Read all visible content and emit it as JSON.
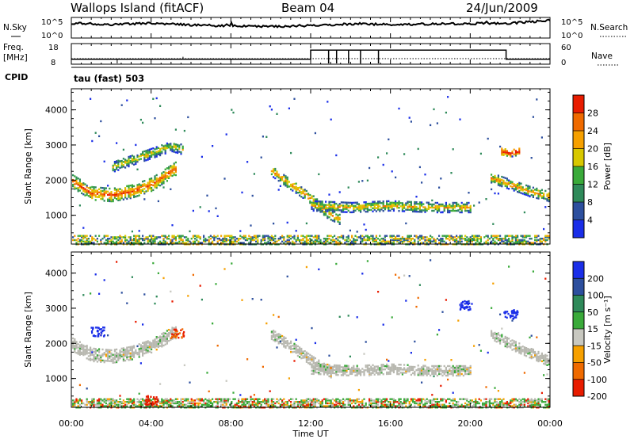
{
  "header": {
    "station": "Wallops Island (fitACF)",
    "beam": "Beam 04",
    "date": "24/Jun/2009"
  },
  "noise_panel": {
    "left_label": "N.Sky",
    "right_label": "N.Search",
    "ticks": [
      "10^5",
      "10^0"
    ]
  },
  "freq_panel": {
    "left_label_1": "Freq.",
    "left_label_2": "[MHz]",
    "left_ticks": [
      "18",
      "8"
    ],
    "right_label": "Nave",
    "right_ticks": [
      "60",
      "0"
    ]
  },
  "cpid": {
    "label": "CPID",
    "value": "tau (fast) 503"
  },
  "colors": {
    "power": [
      "#1a2ee8",
      "#2d4f9e",
      "#2f8a5a",
      "#3aaa3a",
      "#d8c800",
      "#f6a000",
      "#ef6a00",
      "#e81c00"
    ],
    "velocity": [
      "#1a2ee8",
      "#2d4f9e",
      "#2f8a5a",
      "#3aaa3a",
      "#c8c8c0",
      "#f6a000",
      "#ef6a00",
      "#e81c00"
    ],
    "ground": "#b8b8b0"
  },
  "chart_data": [
    {
      "type": "heatmap",
      "name": "power",
      "xlabel": "",
      "ylabel": "Slant Range [km]",
      "xlim": [
        0,
        24
      ],
      "ylim": [
        180,
        4600
      ],
      "yticks": [
        "1000",
        "2000",
        "3000",
        "4000"
      ],
      "colorbar": {
        "label": "Power [dB]",
        "ticks": [
          "4",
          "8",
          "12",
          "16",
          "20",
          "24",
          "28"
        ],
        "range": [
          0,
          32
        ]
      },
      "echo_bands": [
        {
          "t": [
            0.0,
            1.0,
            2.0,
            3.0,
            4.0,
            5.2
          ],
          "r": [
            2000,
            1650,
            1600,
            1700,
            1900,
            2350
          ],
          "halfwidth": 180,
          "level": 20
        },
        {
          "t": [
            2.0,
            3.0,
            4.0,
            5.0,
            5.6
          ],
          "r": [
            2400,
            2600,
            2800,
            3000,
            2900
          ],
          "halfwidth": 150,
          "level": 12
        },
        {
          "t": [
            10.0,
            11.0,
            12.0,
            12.8,
            13.5
          ],
          "r": [
            2300,
            1900,
            1500,
            1100,
            900
          ],
          "halfwidth": 150,
          "level": 16
        },
        {
          "t": [
            12.0,
            14.0,
            16.0,
            18.0,
            20.0
          ],
          "r": [
            1300,
            1250,
            1300,
            1250,
            1250
          ],
          "halfwidth": 140,
          "level": 14
        },
        {
          "t": [
            21.0,
            22.0,
            23.0,
            24.0
          ],
          "r": [
            2100,
            1900,
            1700,
            1550
          ],
          "halfwidth": 140,
          "level": 16
        },
        {
          "t": [
            21.5,
            22.0,
            22.5
          ],
          "r": [
            2850,
            2800,
            2850
          ],
          "halfwidth": 100,
          "level": 24
        }
      ],
      "ground_scatter_range": [
        200,
        480
      ]
    },
    {
      "type": "heatmap",
      "name": "velocity",
      "xlabel": "Time UT",
      "ylabel": "Slant Range [km]",
      "xlim": [
        0,
        24
      ],
      "ylim": [
        180,
        4600
      ],
      "xticks": [
        "00:00",
        "04:00",
        "08:00",
        "12:00",
        "16:00",
        "20:00",
        "00:00"
      ],
      "yticks": [
        "1000",
        "2000",
        "3000",
        "4000"
      ],
      "colorbar": {
        "label": "Velocity [m s⁻¹]",
        "ticks": [
          "200",
          "100",
          "50",
          "15",
          "-15",
          "-50",
          "-100",
          "-200"
        ],
        "range": [
          -250,
          250
        ]
      },
      "ground_scatter_bands": [
        {
          "t": [
            0.0,
            1.0,
            2.0,
            3.0,
            4.0,
            5.2
          ],
          "r": [
            2000,
            1700,
            1650,
            1750,
            1950,
            2350
          ],
          "halfwidth": 180
        },
        {
          "t": [
            10.0,
            11.0,
            12.0,
            13.0
          ],
          "r": [
            2300,
            1950,
            1550,
            1200
          ],
          "halfwidth": 150
        },
        {
          "t": [
            12.0,
            14.0,
            16.0,
            18.0,
            20.0
          ],
          "r": [
            1300,
            1250,
            1300,
            1250,
            1250
          ],
          "halfwidth": 140
        },
        {
          "t": [
            21.0,
            22.0,
            23.0,
            24.0
          ],
          "r": [
            2300,
            2000,
            1750,
            1500
          ],
          "halfwidth": 140
        }
      ],
      "features": [
        {
          "t": 1.3,
          "r": 2350,
          "velocity": 200
        },
        {
          "t": 5.3,
          "r": 2300,
          "velocity": -100
        },
        {
          "t": 22.0,
          "r": 2850,
          "velocity": 200
        },
        {
          "t": 19.8,
          "r": 3100,
          "velocity": 200
        },
        {
          "t": 4.0,
          "r": 400,
          "velocity": -200
        }
      ]
    },
    {
      "type": "line",
      "name": "noise",
      "ylim": [
        0,
        5
      ],
      "x": [
        0,
        2,
        4,
        6,
        8,
        10,
        12,
        14,
        16,
        18,
        20,
        22,
        24
      ],
      "series": [
        {
          "values": [
            3.6,
            3.3,
            3.6,
            3.2,
            2.9,
            2.8,
            3.0,
            3.4,
            3.3,
            3.4,
            3.5,
            3.6,
            4.3
          ]
        }
      ]
    },
    {
      "type": "line",
      "name": "frequency",
      "ylim": [
        8,
        18
      ],
      "x": [
        0,
        12.0,
        12.0,
        21.8,
        21.8,
        24
      ],
      "series": [
        {
          "values": [
            10.4,
            10.4,
            14.8,
            14.8,
            10.4,
            10.4
          ]
        }
      ]
    }
  ]
}
